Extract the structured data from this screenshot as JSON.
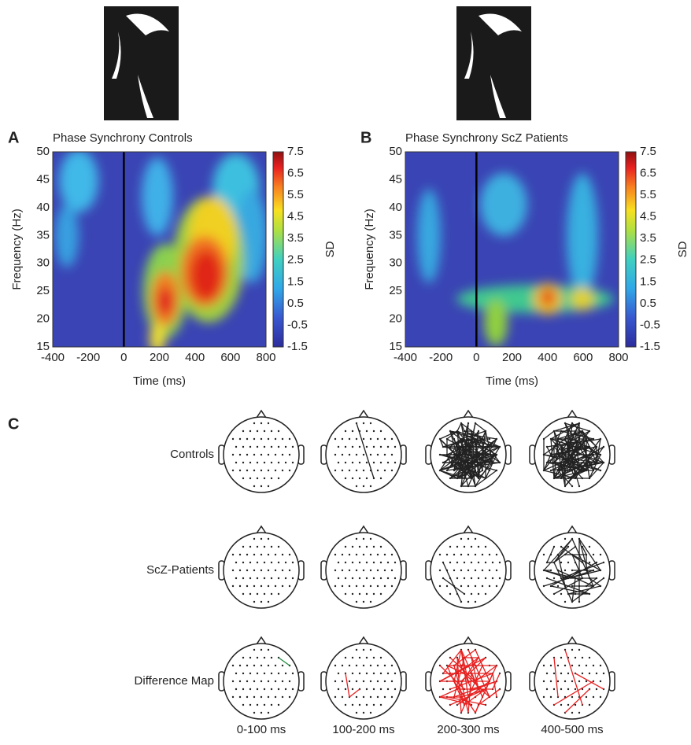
{
  "figure": {
    "panels": [
      {
        "letter": "A",
        "title": "Phase Synchrony Controls",
        "y_label": "Frequency (Hz)",
        "x_label": "Time (ms)",
        "colorbar_label": "SD",
        "yticks": [
          50,
          45,
          40,
          35,
          30,
          25,
          20,
          15
        ],
        "xticks": [
          -400,
          -200,
          0,
          200,
          400,
          600,
          800
        ],
        "colorbar_ticks": [
          7.5,
          6.5,
          5.5,
          4.5,
          3.5,
          2.5,
          1.5,
          0.5,
          -0.5,
          -1.5
        ]
      },
      {
        "letter": "B",
        "title": "Phase Synchrony ScZ Patients",
        "y_label": "Frequency (Hz)",
        "x_label": "Time (ms)",
        "colorbar_label": "SD",
        "yticks": [
          50,
          45,
          40,
          35,
          30,
          25,
          20,
          15
        ],
        "xticks": [
          -400,
          -200,
          0,
          200,
          400,
          600,
          800
        ],
        "colorbar_ticks": [
          7.5,
          6.5,
          5.5,
          4.5,
          3.5,
          2.5,
          1.5,
          0.5,
          -0.5,
          -1.5
        ]
      }
    ],
    "panel_c": {
      "letter": "C",
      "rows": [
        "Controls",
        "ScZ-Patients",
        "Difference Map"
      ],
      "columns": [
        "0-100 ms",
        "100-200 ms",
        "200-300 ms",
        "400-500 ms"
      ]
    }
  }
}
